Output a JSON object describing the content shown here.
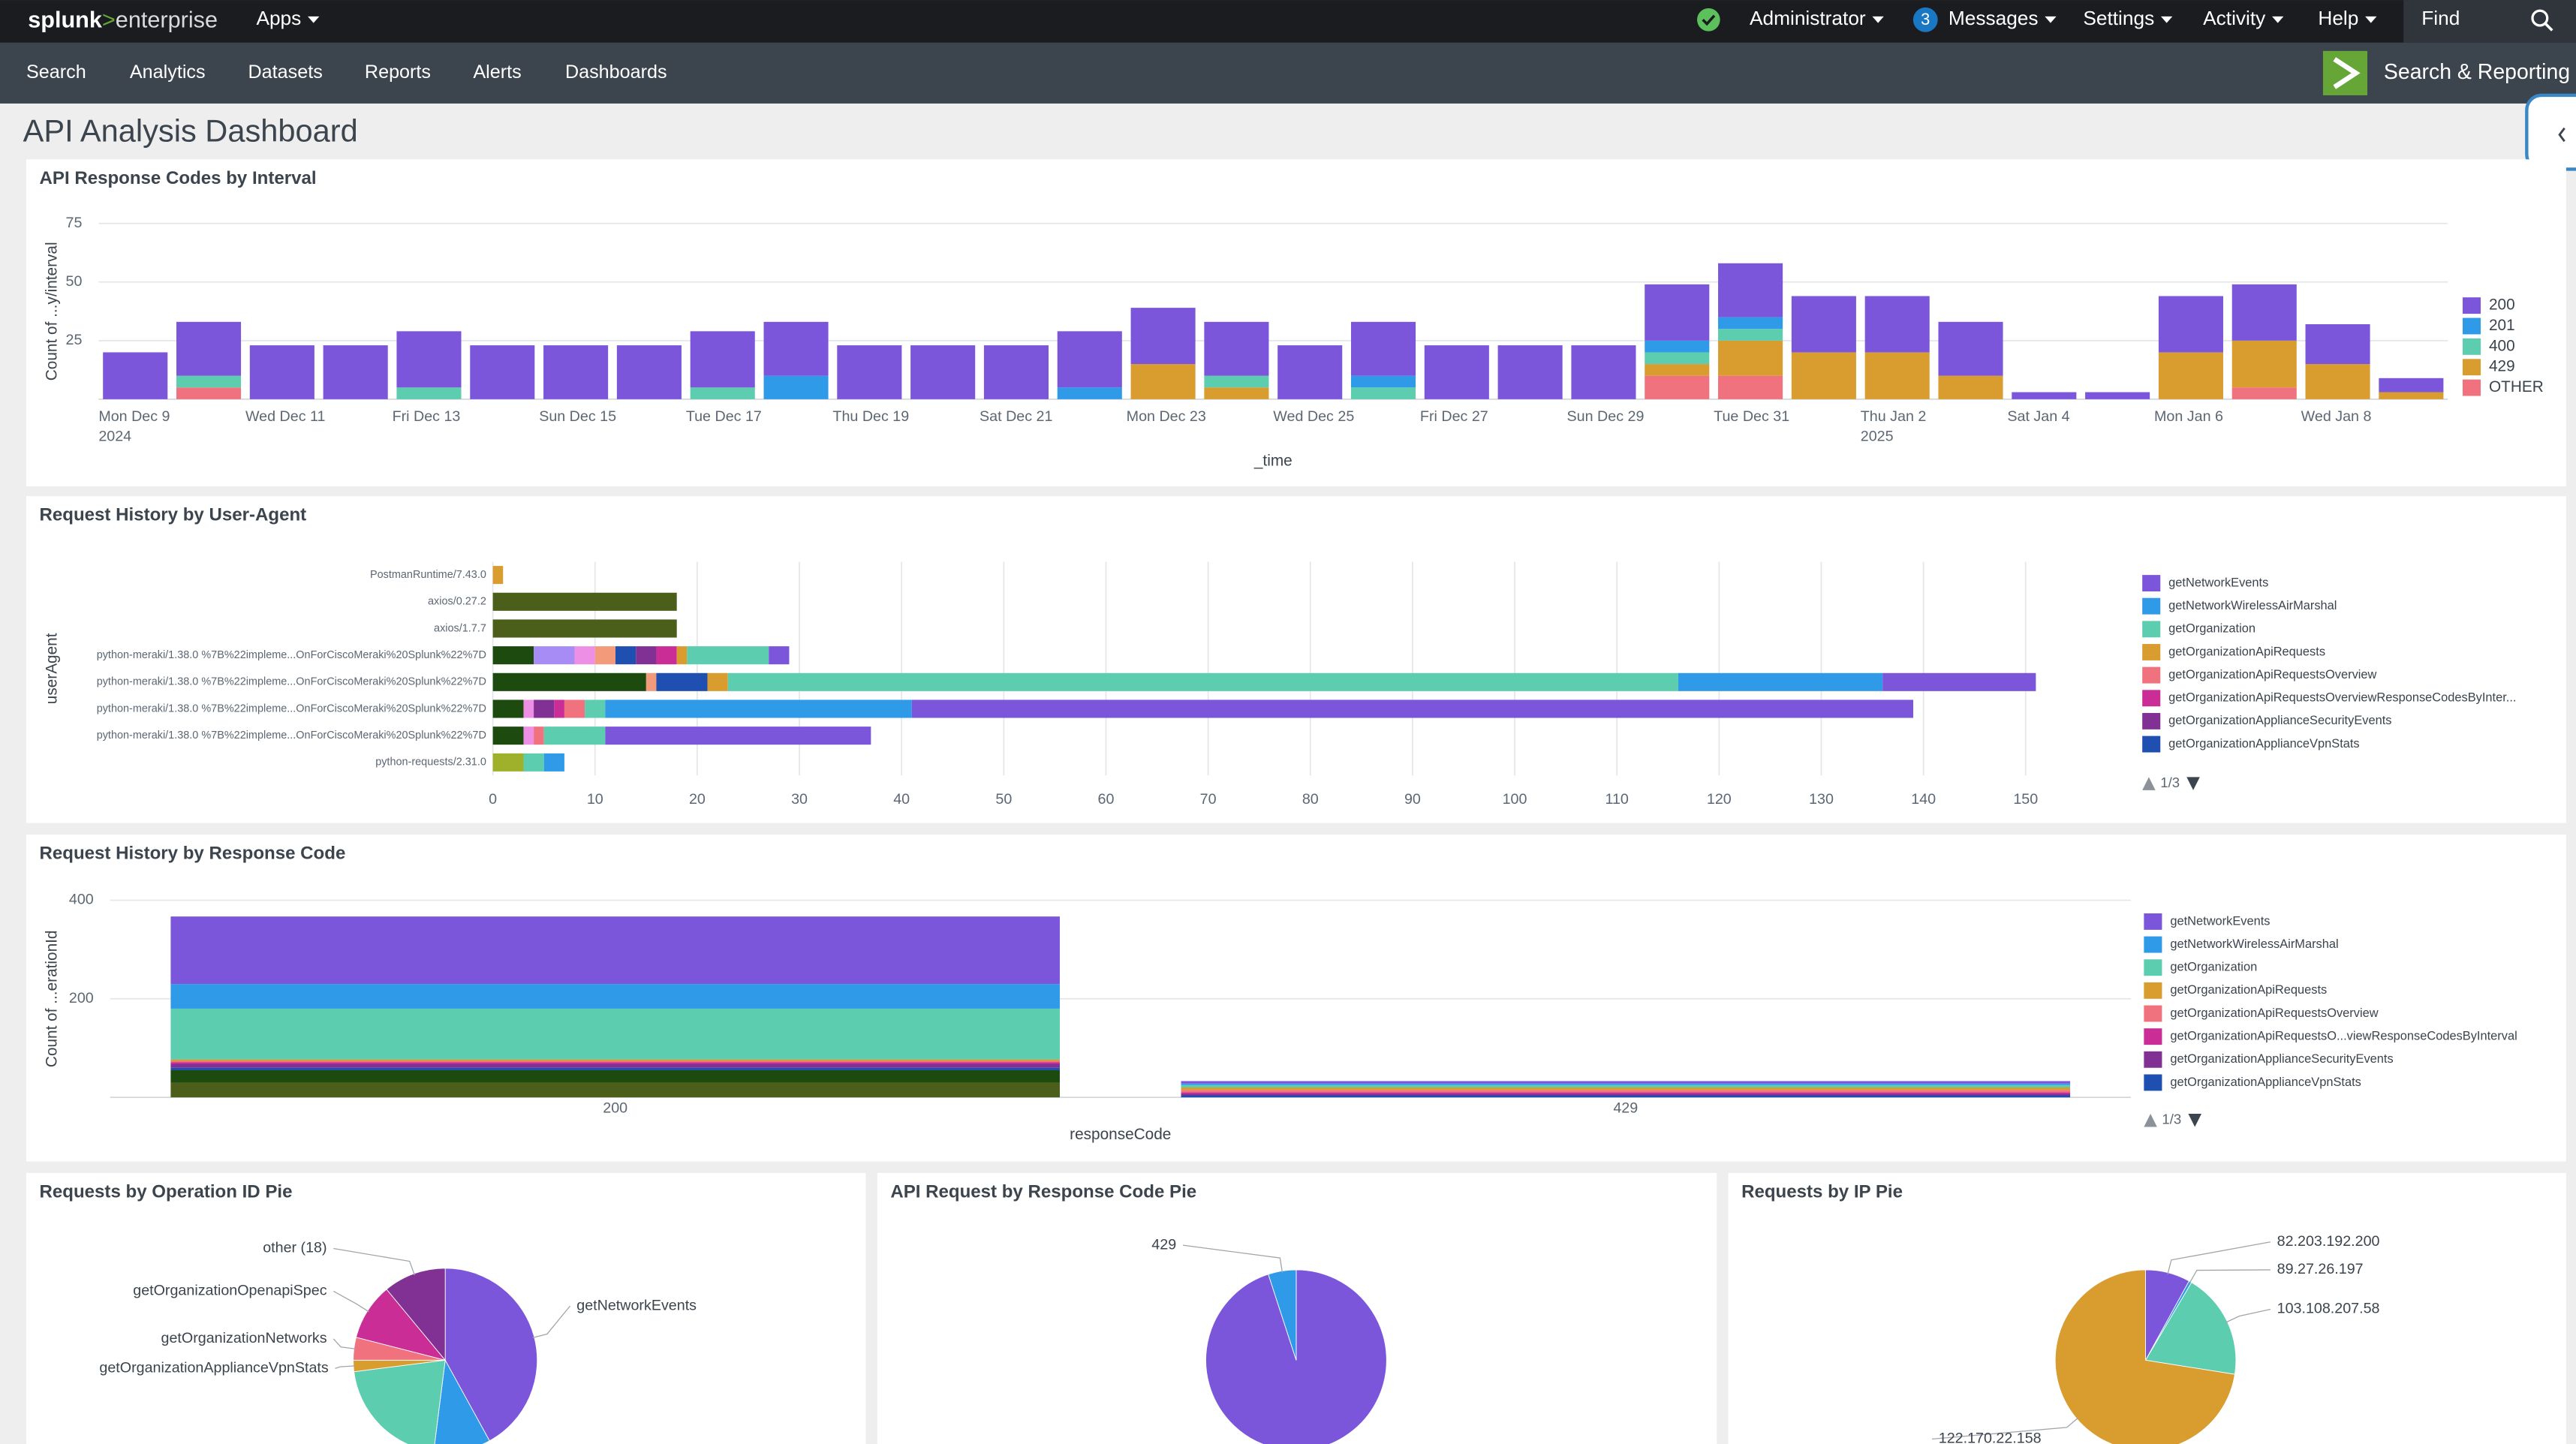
{
  "topbar": {
    "logo": [
      "splunk",
      ">",
      "enterprise"
    ],
    "apps": "Apps",
    "user": "Administrator",
    "message_count": 3,
    "messages": "Messages",
    "settings": "Settings",
    "activity": "Activity",
    "help": "Help",
    "find": "Find"
  },
  "appbar": {
    "tabs": [
      "Search",
      "Analytics",
      "Datasets",
      "Reports",
      "Alerts",
      "Dashboards"
    ],
    "app_name": "Search & Reporting"
  },
  "dashboard_title": "API Analysis Dashboard",
  "chart_data": [
    {
      "type": "bar",
      "stacked": true,
      "title": "API Response Codes by Interval",
      "x_label": "_time",
      "y_label": "Count of ...y/interval",
      "categories": [
        "Mon Dec 9",
        null,
        "Wed Dec 11",
        null,
        "Fri Dec 13",
        null,
        "Sun Dec 15",
        null,
        "Tue Dec 17",
        null,
        "Thu Dec 19",
        null,
        "Sat Dec 21",
        null,
        "Mon Dec 23",
        null,
        "Wed Dec 25",
        null,
        "Fri Dec 27",
        null,
        "Sun Dec 29",
        null,
        "Tue Dec 31",
        null,
        "Thu Jan 2",
        null,
        "Sat Jan 4",
        null,
        "Mon Jan 6",
        null,
        "Wed Jan 8",
        null
      ],
      "category_sublabels": [
        "2024",
        null,
        null,
        null,
        null,
        null,
        null,
        null,
        null,
        null,
        null,
        null,
        null,
        null,
        null,
        null,
        null,
        null,
        null,
        null,
        null,
        null,
        null,
        null,
        "2025",
        null,
        null,
        null,
        null,
        null,
        null,
        null
      ],
      "series": [
        {
          "name": "200",
          "color": "#7b56db",
          "values": [
            20,
            23,
            23,
            23,
            24,
            23,
            23,
            23,
            24,
            23,
            23,
            23,
            23,
            24,
            24,
            23,
            23,
            23,
            23,
            23,
            23,
            24,
            23,
            24,
            24,
            23,
            3,
            3,
            24,
            24,
            17,
            6
          ]
        },
        {
          "name": "201",
          "color": "#2f9be8",
          "values": [
            0,
            0,
            0,
            0,
            0,
            0,
            0,
            0,
            0,
            10,
            0,
            0,
            0,
            5,
            0,
            0,
            0,
            5,
            0,
            0,
            0,
            5,
            5,
            0,
            0,
            0,
            0,
            0,
            0,
            0,
            0,
            0
          ]
        },
        {
          "name": "400",
          "color": "#5ccdaf",
          "values": [
            0,
            5,
            0,
            0,
            5,
            0,
            0,
            0,
            5,
            0,
            0,
            0,
            0,
            0,
            0,
            5,
            0,
            5,
            0,
            0,
            0,
            5,
            5,
            0,
            0,
            0,
            0,
            0,
            0,
            0,
            0,
            0
          ]
        },
        {
          "name": "429",
          "color": "#d99c2f",
          "values": [
            0,
            0,
            0,
            0,
            0,
            0,
            0,
            0,
            0,
            0,
            0,
            0,
            0,
            0,
            15,
            5,
            0,
            0,
            0,
            0,
            0,
            5,
            15,
            20,
            20,
            10,
            0,
            0,
            20,
            20,
            15,
            3
          ]
        },
        {
          "name": "OTHER",
          "color": "#f0727e",
          "values": [
            0,
            5,
            0,
            0,
            0,
            0,
            0,
            0,
            0,
            0,
            0,
            0,
            0,
            0,
            0,
            0,
            0,
            0,
            0,
            0,
            0,
            10,
            10,
            0,
            0,
            0,
            0,
            0,
            0,
            5,
            0,
            0
          ]
        }
      ],
      "ylim": [
        0,
        75
      ],
      "yticks": [
        25,
        50,
        75
      ],
      "grid": true,
      "legend": "right"
    },
    {
      "type": "hbar",
      "stacked": true,
      "title": "Request History by User-Agent",
      "y_label": "userAgent",
      "categories": [
        "PostmanRuntime/7.43.0",
        "axios/0.27.2",
        "axios/1.7.7",
        "python-meraki/1.38.0 %7B%22impleme...OnForCiscoMeraki%20Splunk%22%7D",
        "python-meraki/1.38.0 %7B%22impleme...OnForCiscoMeraki%20Splunk%22%7D",
        "python-meraki/1.38.0 %7B%22impleme...OnForCiscoMeraki%20Splunk%22%7D",
        "python-meraki/1.38.0 %7B%22impleme...OnForCiscoMeraki%20Splunk%22%7D",
        "python-requests/2.31.0"
      ],
      "series": [
        {
          "name": "getNetworkEvents",
          "color": "#7b56db",
          "values": [
            0,
            0,
            0,
            2,
            15,
            98,
            26,
            0
          ]
        },
        {
          "name": "getNetworkWirelessAirMarshal",
          "color": "#2f9be8",
          "values": [
            0,
            0,
            0,
            0,
            20,
            30,
            0,
            2
          ]
        },
        {
          "name": "getOrganization",
          "color": "#5ccdaf",
          "values": [
            0,
            0,
            0,
            8,
            93,
            2,
            6,
            2
          ]
        },
        {
          "name": "getOrganizationApiRequests",
          "color": "#d99c2f",
          "values": [
            1,
            0,
            0,
            1,
            2,
            0,
            0,
            0
          ]
        },
        {
          "name": "getOrganizationApiRequestsOverview",
          "color": "#f0727e",
          "values": [
            0,
            0,
            0,
            0,
            0,
            2,
            1,
            0
          ]
        },
        {
          "name": "getOrganizationApiRequestsOverviewResponseCodesByInter...",
          "color": "#cb2d96",
          "values": [
            0,
            0,
            0,
            2,
            0,
            1,
            0,
            0
          ]
        },
        {
          "name": "getOrganizationApplianceSecurityEvents",
          "color": "#813193",
          "values": [
            0,
            0,
            0,
            2,
            0,
            2,
            0,
            0
          ]
        },
        {
          "name": "getOrganizationApplianceVpnStats",
          "color": "#1f4fb0",
          "values": [
            0,
            0,
            0,
            2,
            5,
            0,
            0,
            0
          ]
        },
        {
          "name": null,
          "color": "#9fb12a",
          "values": [
            0,
            0,
            0,
            0,
            0,
            0,
            0,
            3
          ]
        },
        {
          "name": null,
          "color": "#f29a7a",
          "values": [
            0,
            0,
            0,
            2,
            1,
            0,
            0,
            0
          ]
        },
        {
          "name": null,
          "color": "#ee8fe6",
          "values": [
            0,
            0,
            0,
            2,
            0,
            1,
            1,
            0
          ]
        },
        {
          "name": null,
          "color": "#a88cf5",
          "values": [
            0,
            0,
            0,
            4,
            0,
            0,
            0,
            0
          ]
        },
        {
          "name": null,
          "color": "#1d4a0f",
          "values": [
            0,
            0,
            0,
            4,
            15,
            3,
            3,
            0
          ]
        },
        {
          "name": null,
          "color": "#4b5e1a",
          "values": [
            0,
            18,
            18,
            0,
            0,
            0,
            0,
            0
          ]
        }
      ],
      "xlim": [
        0,
        150
      ],
      "xticks": [
        0,
        10,
        20,
        30,
        40,
        50,
        60,
        70,
        80,
        90,
        100,
        110,
        120,
        130,
        140,
        150
      ],
      "grid": true,
      "legend": "right",
      "legend_page": "1/3"
    },
    {
      "type": "bar",
      "stacked": true,
      "title": "Request History by Response Code",
      "x_label": "responseCode",
      "y_label": "Count of ...erationId",
      "categories": [
        "200",
        "429"
      ],
      "series": [
        {
          "name": "getNetworkEvents",
          "color": "#7b56db",
          "values": [
            137,
            5
          ]
        },
        {
          "name": "getNetworkWirelessAirMarshal",
          "color": "#2f9be8",
          "values": [
            50,
            3
          ]
        },
        {
          "name": "getOrganization",
          "color": "#5ccdaf",
          "values": [
            103,
            5
          ]
        },
        {
          "name": "getOrganizationApiRequests",
          "color": "#d99c2f",
          "values": [
            3,
            5
          ]
        },
        {
          "name": "getOrganizationApiRequestsOverview",
          "color": "#f0727e",
          "values": [
            3,
            5
          ]
        },
        {
          "name": "getOrganizationApiRequestsO...viewResponseCodesByInterval",
          "color": "#cb2d96",
          "values": [
            3,
            3
          ]
        },
        {
          "name": "getOrganizationApplianceSecurityEvents",
          "color": "#813193",
          "values": [
            8,
            3
          ]
        },
        {
          "name": "getOrganizationApplianceVpnStats",
          "color": "#1f4fb0",
          "values": [
            5,
            4
          ]
        },
        {
          "name": null,
          "color": "#1d4a0f",
          "values": [
            25,
            0
          ]
        },
        {
          "name": null,
          "color": "#4b5e1a",
          "values": [
            30,
            0
          ]
        }
      ],
      "ylim": [
        0,
        400
      ],
      "yticks": [
        200,
        400
      ],
      "grid": true,
      "legend": "right",
      "legend_page": "1/3"
    },
    {
      "type": "pie",
      "title": "Requests by Operation ID Pie",
      "labels": [
        "getNetworkEvents",
        null,
        null,
        "getOrganizationApplianceVpnStats",
        "getOrganizationNetworks",
        "getOrganizationOpenapiSpec",
        "other (18)"
      ],
      "values": [
        42,
        10,
        21,
        2,
        4,
        10,
        11
      ],
      "colors": [
        "#7b56db",
        "#2f9be8",
        "#5ccdaf",
        "#d99c2f",
        "#f0727e",
        "#cb2d96",
        "#813193"
      ]
    },
    {
      "type": "pie",
      "title": "API Request by Response Code Pie",
      "labels": [
        null,
        "429"
      ],
      "values": [
        95,
        5
      ],
      "colors": [
        "#7b56db",
        "#2f9be8"
      ]
    },
    {
      "type": "pie",
      "title": "Requests by IP Pie",
      "labels": [
        "82.203.192.200",
        "89.27.26.197",
        "103.108.207.58",
        "122.170.22.158"
      ],
      "values": [
        8,
        0.5,
        19,
        72.5
      ],
      "colors": [
        "#7b56db",
        "#2f9be8",
        "#5ccdaf",
        "#d99c2f"
      ]
    }
  ]
}
